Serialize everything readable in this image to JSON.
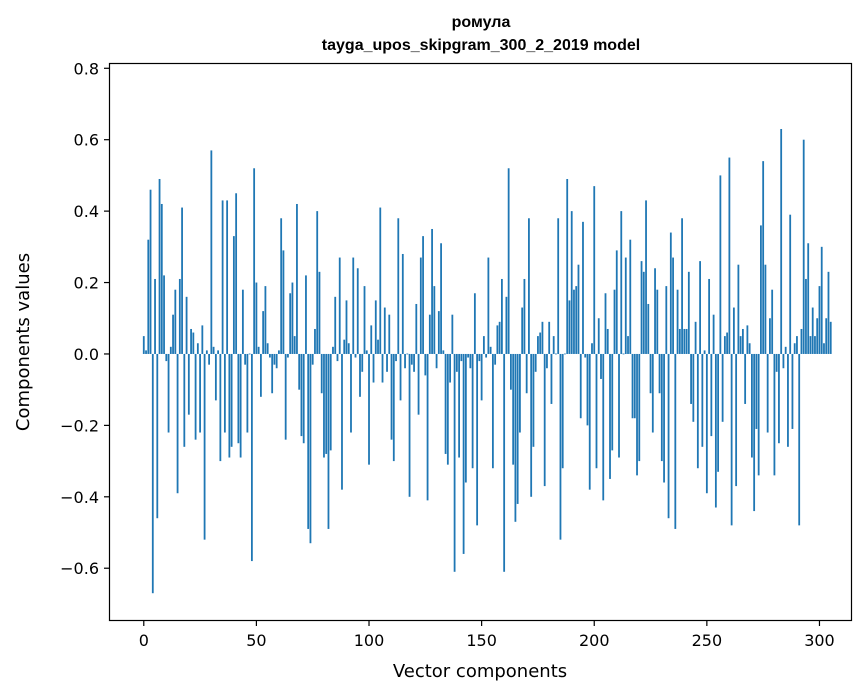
{
  "chart_data": {
    "type": "bar",
    "title": "ромула",
    "subtitle": "tayga_upos_skipgram_300_2_2019 model",
    "xlabel": "Vector components",
    "ylabel": "Components values",
    "xlim": [
      -15,
      314
    ],
    "ylim": [
      -0.745,
      0.812
    ],
    "xticks": [
      0,
      50,
      100,
      150,
      200,
      250,
      300
    ],
    "xtick_labels": [
      "0",
      "50",
      "100",
      "150",
      "200",
      "250",
      "300"
    ],
    "yticks": [
      -0.6,
      -0.4,
      -0.2,
      0.0,
      0.2,
      0.4,
      0.6,
      0.8
    ],
    "ytick_labels": [
      "−0.6",
      "−0.4",
      "−0.2",
      "0.0",
      "0.2",
      "0.4",
      "0.6",
      "0.8"
    ],
    "bar_color": "#1f77b4",
    "grid": false,
    "legend": "none",
    "values": [
      0.05,
      0.01,
      0.32,
      0.46,
      -0.67,
      0.21,
      -0.46,
      0.49,
      0.42,
      0.22,
      -0.02,
      -0.22,
      0.02,
      0.11,
      0.18,
      -0.39,
      0.21,
      0.41,
      -0.26,
      0.16,
      -0.17,
      0.07,
      0.06,
      -0.24,
      0.03,
      -0.22,
      0.08,
      -0.52,
      0.01,
      -0.03,
      0.57,
      0.02,
      -0.13,
      0.01,
      -0.3,
      0.43,
      -0.22,
      0.43,
      -0.29,
      -0.26,
      0.33,
      0.45,
      -0.25,
      -0.29,
      0.18,
      -0.03,
      -0.22,
      0.0,
      -0.58,
      0.52,
      0.2,
      0.02,
      -0.12,
      0.12,
      0.19,
      0.03,
      -0.01,
      -0.11,
      -0.03,
      -0.04,
      0.01,
      0.38,
      0.29,
      -0.24,
      -0.01,
      0.17,
      0.2,
      0.05,
      0.42,
      -0.1,
      -0.23,
      -0.25,
      0.22,
      -0.49,
      -0.53,
      -0.03,
      0.07,
      0.4,
      0.23,
      -0.11,
      -0.29,
      -0.28,
      -0.49,
      -0.27,
      0.02,
      0.16,
      -0.02,
      0.27,
      -0.38,
      0.04,
      0.15,
      0.03,
      -0.22,
      0.27,
      -0.01,
      0.24,
      -0.12,
      -0.05,
      0.19,
      0.01,
      -0.31,
      0.08,
      -0.08,
      0.15,
      0.04,
      0.41,
      -0.08,
      0.13,
      -0.05,
      0.11,
      -0.24,
      -0.3,
      -0.02,
      0.38,
      -0.13,
      0.28,
      -0.04,
      0.0,
      -0.4,
      -0.03,
      -0.05,
      0.14,
      -0.17,
      0.27,
      0.33,
      -0.06,
      -0.41,
      0.11,
      0.35,
      0.19,
      -0.04,
      0.12,
      0.31,
      0.01,
      -0.28,
      -0.31,
      -0.08,
      0.11,
      -0.61,
      -0.05,
      -0.29,
      -0.02,
      -0.56,
      -0.36,
      -0.01,
      -0.04,
      -0.32,
      0.17,
      -0.48,
      -0.02,
      -0.13,
      0.05,
      -0.01,
      0.27,
      0.02,
      -0.32,
      -0.03,
      0.08,
      0.09,
      0.21,
      -0.61,
      0.16,
      0.52,
      -0.1,
      -0.31,
      -0.47,
      -0.42,
      -0.22,
      0.13,
      0.21,
      -0.11,
      0.38,
      -0.4,
      -0.26,
      -0.05,
      0.05,
      0.06,
      0.09,
      -0.37,
      -0.04,
      0.09,
      -0.14,
      0.05,
      0.0,
      0.38,
      -0.52,
      -0.32,
      0.0,
      0.49,
      0.15,
      0.4,
      0.18,
      0.19,
      0.25,
      -0.18,
      0.37,
      -0.01,
      -0.2,
      -0.38,
      0.03,
      0.47,
      -0.32,
      0.1,
      -0.07,
      -0.41,
      0.17,
      0.07,
      -0.35,
      -0.27,
      0.18,
      0.29,
      -0.29,
      0.4,
      0.0,
      0.27,
      0.05,
      0.32,
      -0.18,
      -0.18,
      -0.34,
      -0.3,
      0.26,
      0.23,
      0.43,
      0.14,
      -0.11,
      -0.22,
      0.24,
      0.18,
      -0.11,
      -0.3,
      -0.36,
      0.19,
      -0.46,
      0.34,
      0.27,
      -0.49,
      0.18,
      0.07,
      0.38,
      0.07,
      0.07,
      0.23,
      -0.14,
      -0.19,
      0.09,
      -0.32,
      0.26,
      -0.26,
      0.01,
      -0.39,
      0.21,
      -0.23,
      0.11,
      -0.43,
      -0.33,
      0.5,
      -0.19,
      0.05,
      0.06,
      0.55,
      -0.48,
      0.13,
      -0.37,
      0.25,
      0.05,
      0.07,
      -0.14,
      0.08,
      0.03,
      -0.29,
      -0.44,
      -0.21,
      -0.34,
      0.36,
      0.54,
      0.25,
      -0.22,
      0.1,
      0.18,
      -0.34,
      -0.05,
      -0.25,
      0.63,
      -0.04,
      0.02,
      -0.26,
      0.39,
      -0.21,
      0.03,
      0.05,
      -0.48,
      0.07,
      0.6,
      0.21,
      0.31,
      0.05,
      0.13,
      0.05,
      0.1,
      0.19,
      0.3,
      0.03,
      0.1,
      0.23,
      0.09
    ]
  }
}
